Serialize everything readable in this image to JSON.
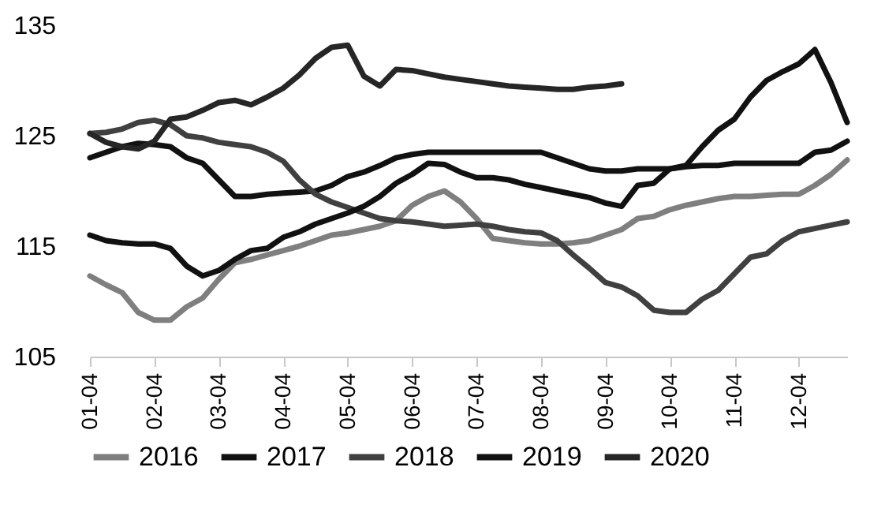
{
  "chart_data": {
    "type": "line",
    "categories": [
      "01-04",
      null,
      null,
      null,
      "02-04",
      null,
      null,
      null,
      "03-04",
      null,
      null,
      null,
      "04-04",
      null,
      null,
      null,
      "05-04",
      null,
      null,
      null,
      "06-04",
      null,
      null,
      null,
      "07-04",
      null,
      null,
      null,
      "08-04",
      null,
      null,
      null,
      "09-04",
      null,
      null,
      null,
      "10-04",
      null,
      null,
      null,
      "11-04",
      null,
      null,
      null,
      "12-04",
      null,
      null,
      null
    ],
    "series": [
      {
        "name": "2016",
        "color": "#7f7f7f",
        "values": [
          112.3,
          111.5,
          110.8,
          109,
          108.3,
          108.3,
          109.5,
          110.3,
          112,
          113.5,
          113.8,
          114.2,
          114.6,
          115,
          115.5,
          116,
          116.2,
          116.5,
          116.8,
          117.3,
          118.7,
          119.5,
          120,
          119,
          117.5,
          115.7,
          115.5,
          115.3,
          115.2,
          115.2,
          115.3,
          115.5,
          116,
          116.5,
          117.5,
          117.7,
          118.3,
          118.7,
          119,
          119.3,
          119.5,
          119.5,
          119.6,
          119.7,
          119.7,
          120.5,
          121.5,
          122.8
        ]
      },
      {
        "name": "2017",
        "color": "#111111",
        "values": [
          123,
          123.5,
          124,
          124.3,
          124.2,
          124,
          123,
          122.5,
          121,
          119.5,
          119.5,
          119.7,
          119.8,
          119.9,
          120,
          120.5,
          121.3,
          121.7,
          122.3,
          123,
          123.3,
          123.5,
          123.5,
          123.5,
          123.5,
          123.5,
          123.5,
          123.5,
          123.5,
          123,
          122.5,
          122,
          121.8,
          121.8,
          122,
          122,
          122,
          122.2,
          122.3,
          122.3,
          122.5,
          122.5,
          122.5,
          122.5,
          122.5,
          123.5,
          123.7,
          124.5
        ]
      },
      {
        "name": "2018",
        "color": "#404040",
        "values": [
          125.2,
          125.3,
          125.6,
          126.2,
          126.4,
          126,
          125,
          124.8,
          124.4,
          124.2,
          124,
          123.5,
          122.7,
          121,
          119.7,
          119,
          118.5,
          118,
          117.5,
          117.3,
          117.2,
          117,
          116.8,
          116.9,
          117,
          116.8,
          116.5,
          116.3,
          116.2,
          115.5,
          114.2,
          113,
          111.7,
          111.3,
          110.5,
          109.2,
          109,
          109,
          110.2,
          111,
          112.5,
          114,
          114.3,
          115.5,
          116.3,
          116.6,
          116.9,
          117.2
        ]
      },
      {
        "name": "2019",
        "color": "#111111",
        "values": [
          116,
          115.5,
          115.3,
          115.2,
          115.2,
          114.8,
          113.2,
          112.3,
          112.8,
          113.8,
          114.6,
          114.8,
          115.8,
          116.3,
          117,
          117.5,
          118,
          118.6,
          119.5,
          120.7,
          121.5,
          122.5,
          122.4,
          121.7,
          121.2,
          121.2,
          121,
          120.6,
          120.3,
          120,
          119.7,
          119.4,
          118.9,
          118.6,
          120.5,
          120.7,
          122,
          122.3,
          124,
          125.5,
          126.5,
          128.5,
          130,
          130.8,
          131.5,
          132.8,
          129.8,
          126.2
        ]
      },
      {
        "name": "2020",
        "color": "#262626",
        "values": [
          125.2,
          124.4,
          124,
          123.8,
          124.5,
          126.5,
          126.7,
          127.3,
          128,
          128.2,
          127.8,
          128.5,
          129.3,
          130.5,
          132,
          133,
          133.2,
          130.4,
          129.5,
          131,
          130.9,
          130.6,
          130.3,
          130.1,
          129.9,
          129.7,
          129.5,
          129.4,
          129.3,
          129.2,
          129.2,
          129.4,
          129.5,
          129.7,
          null,
          null,
          null,
          null,
          null,
          null,
          null,
          null,
          null,
          null,
          null,
          null,
          null,
          null
        ]
      }
    ],
    "ylim": [
      105,
      135
    ],
    "yticks": [
      105,
      115,
      125,
      135
    ],
    "grid": false,
    "legend": "bottom",
    "line_style": "solid",
    "marker": "none"
  }
}
